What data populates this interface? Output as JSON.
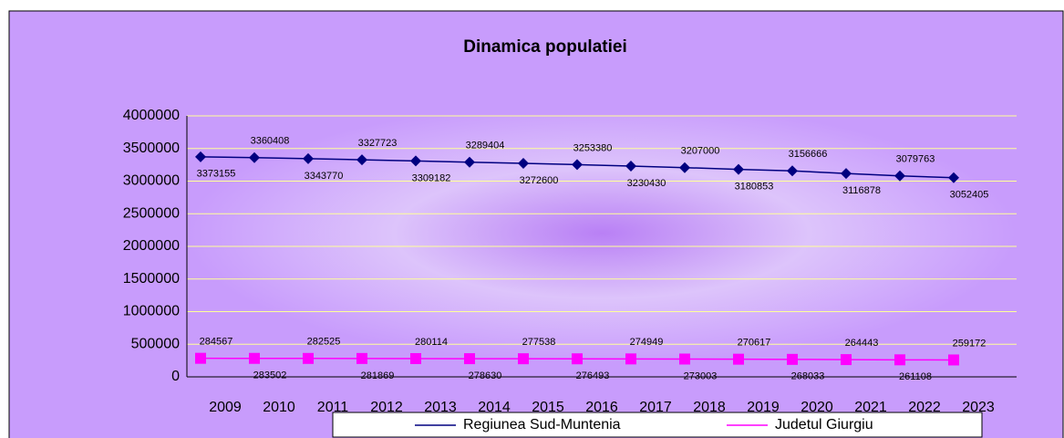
{
  "chart_data": {
    "type": "line",
    "title": "Dinamica populatiei",
    "categories": [
      "2009",
      "2010",
      "2011",
      "2012",
      "2013",
      "2014",
      "2015",
      "2016",
      "2017",
      "2018",
      "2019",
      "2020",
      "2021",
      "2022",
      "2023"
    ],
    "series": [
      {
        "name": "Regiunea Sud-Muntenia",
        "color": "#000080",
        "marker": "diamond",
        "values": [
          3373155,
          3360408,
          3343770,
          3327723,
          3309182,
          3289404,
          3272600,
          3253380,
          3230430,
          3207000,
          3180853,
          3156666,
          3116878,
          3079763,
          3052405
        ]
      },
      {
        "name": "Judetul Giurgiu",
        "color": "#ff00ff",
        "marker": "square",
        "values": [
          284567,
          283502,
          282525,
          281869,
          280114,
          278630,
          277538,
          276493,
          274949,
          273003,
          270617,
          268033,
          264443,
          261108,
          259172
        ]
      }
    ],
    "ylim": [
      0,
      4000000
    ],
    "yticks": [
      0,
      500000,
      1000000,
      1500000,
      2000000,
      2500000,
      3000000,
      3500000,
      4000000
    ],
    "grid": true,
    "legend": "bottom"
  }
}
